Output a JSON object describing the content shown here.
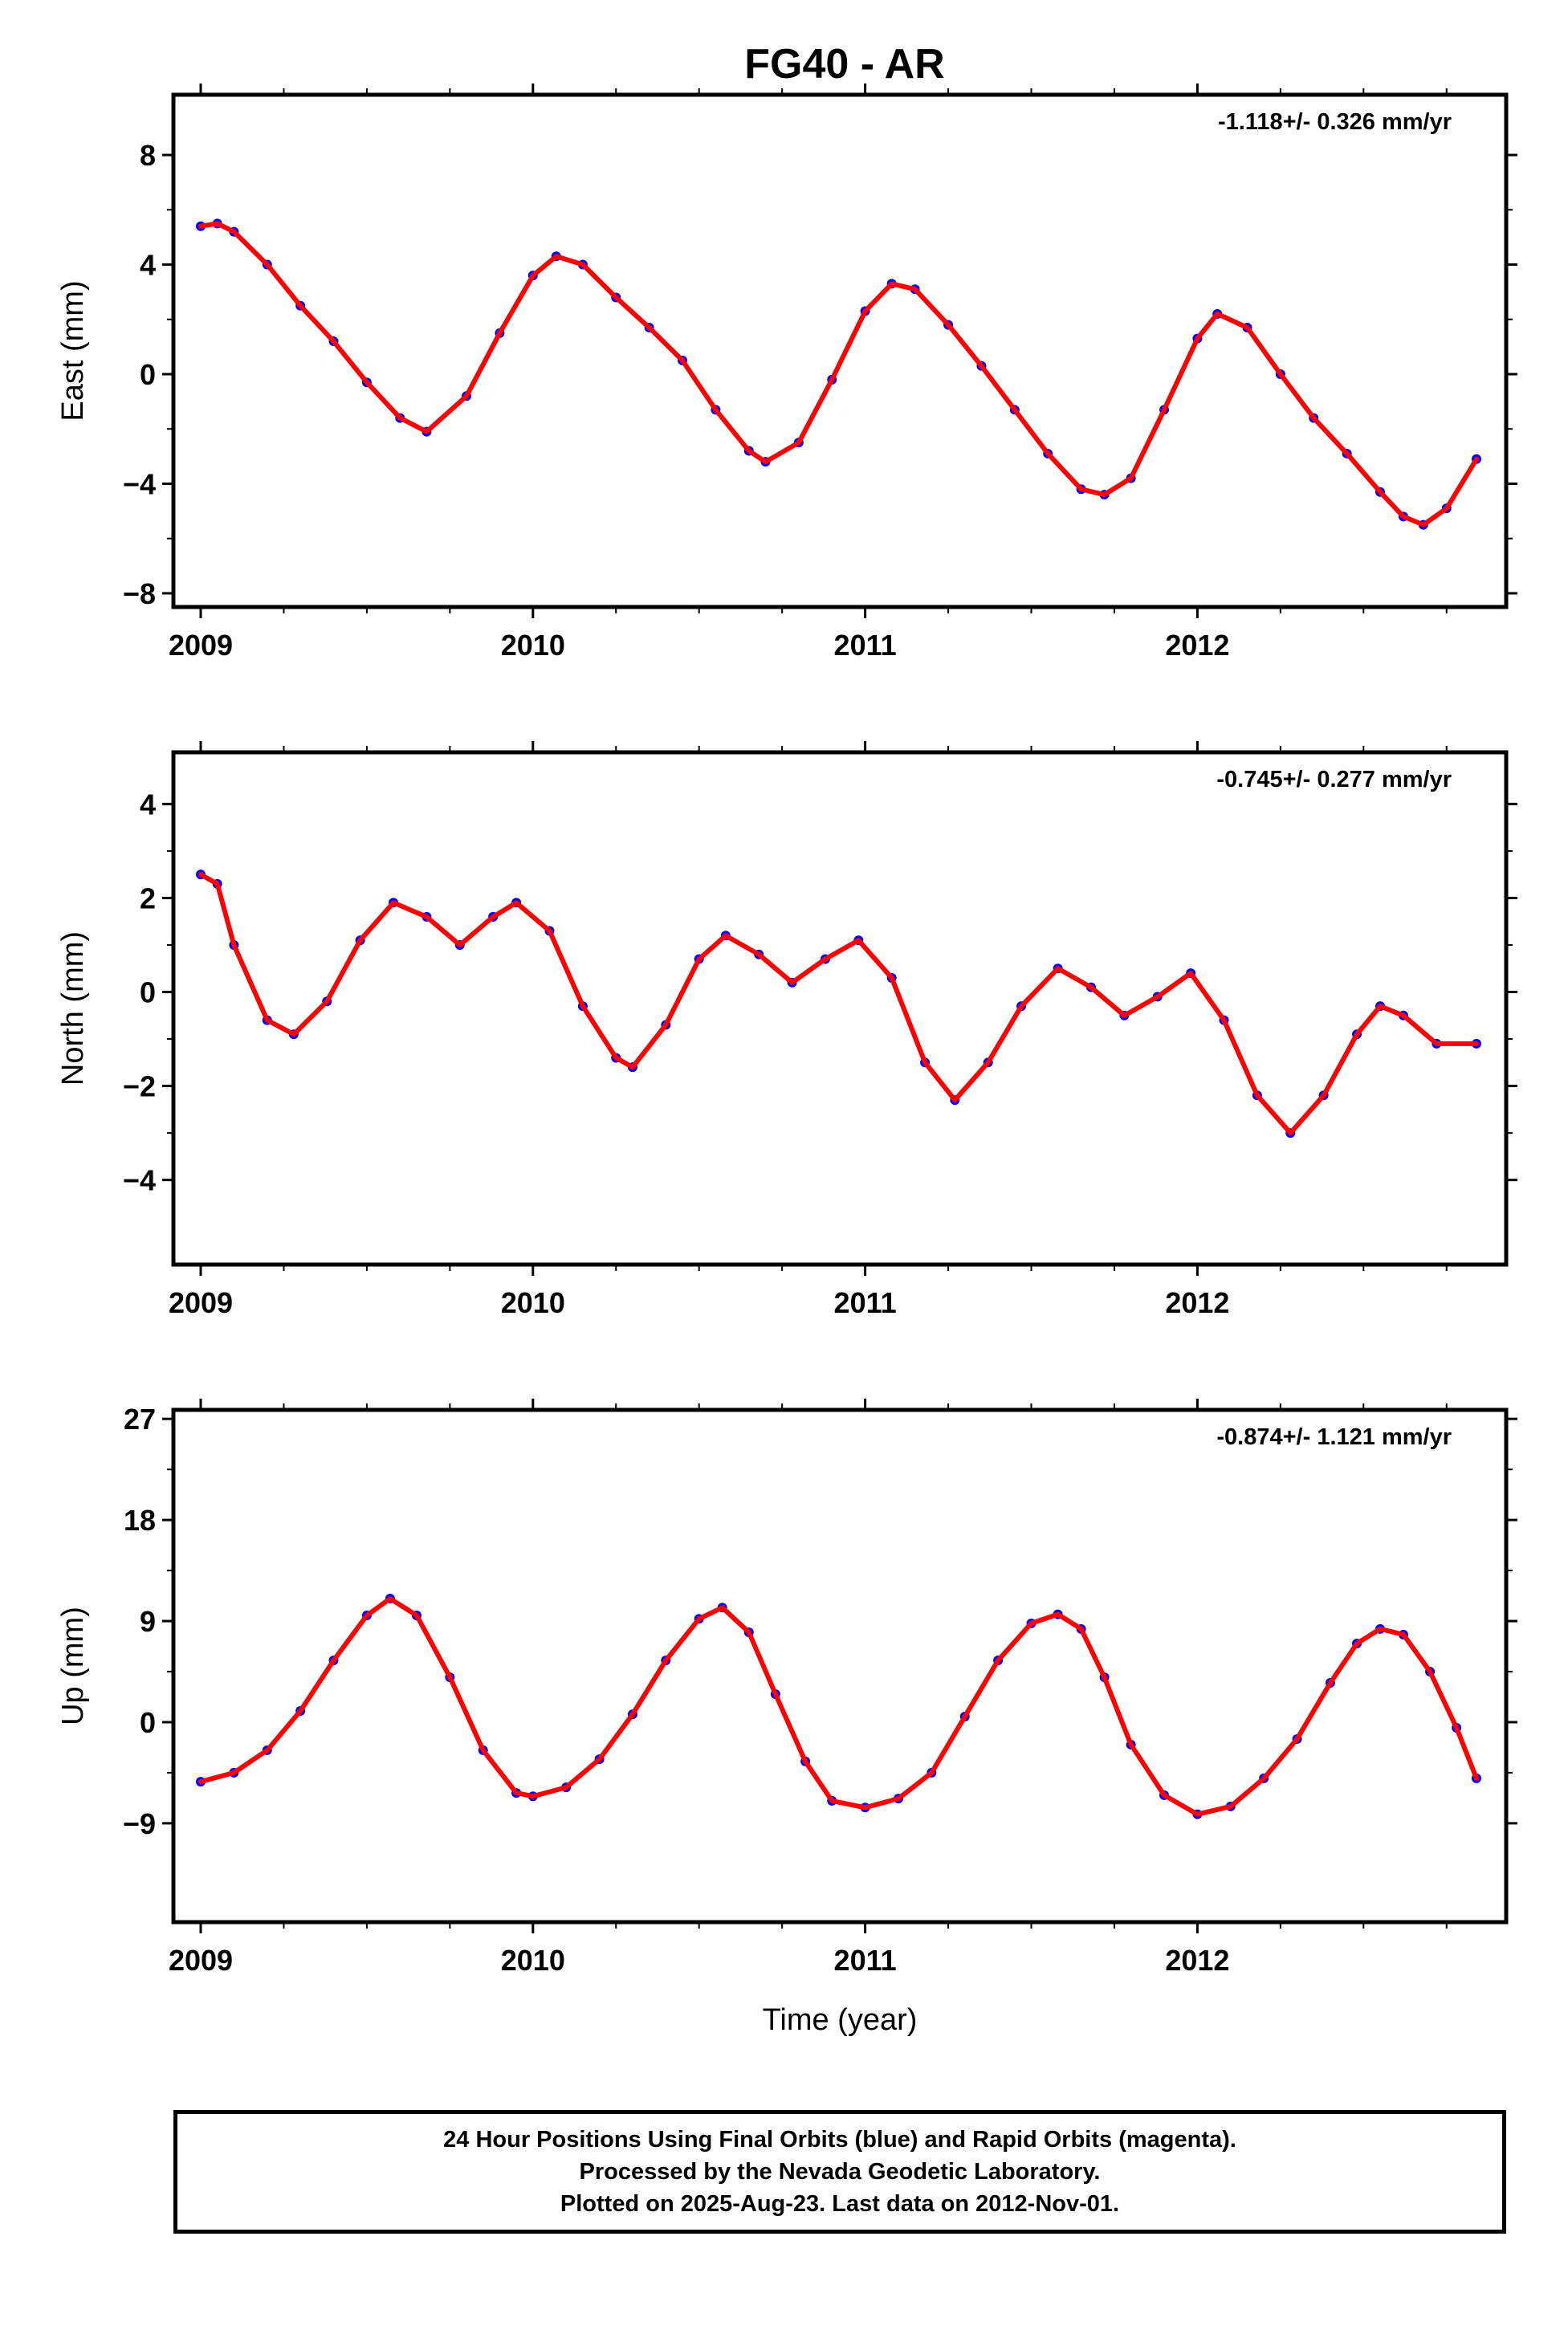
{
  "footer": {
    "line1": "24 Hour Positions Using Final Orbits (blue) and Rapid Orbits (magenta).",
    "line2": "Processed by the Nevada Geodetic Laboratory.",
    "line3": "Plotted on 2025-Aug-23. Last data on 2012-Nov-01."
  },
  "colors": {
    "points": "#0000ff",
    "fit": "#ff0000",
    "frame": "#000000"
  },
  "chart_data": [
    {
      "type": "scatter",
      "title": "FG40 - AR",
      "xlabel": "",
      "ylabel": "East (mm)",
      "rate_text": "-1.118+/- 0.326 mm/yr",
      "xlim": [
        2009.0,
        2012.84
      ],
      "ylim": [
        -8.5,
        10.2
      ],
      "xticks": [
        2009,
        2010,
        2011,
        2012
      ],
      "yticks": [
        -8,
        -4,
        0,
        4,
        8
      ],
      "grid": false,
      "series": [
        {
          "values": [
            [
              2009.0,
              5.4
            ],
            [
              2009.05,
              5.5
            ],
            [
              2009.1,
              5.2
            ],
            [
              2009.2,
              4.0
            ],
            [
              2009.3,
              2.5
            ],
            [
              2009.4,
              1.2
            ],
            [
              2009.5,
              -0.3
            ],
            [
              2009.6,
              -1.6
            ],
            [
              2009.68,
              -2.1
            ],
            [
              2009.8,
              -0.8
            ],
            [
              2009.9,
              1.5
            ],
            [
              2010.0,
              3.6
            ],
            [
              2010.07,
              4.3
            ],
            [
              2010.15,
              4.0
            ],
            [
              2010.25,
              2.8
            ],
            [
              2010.35,
              1.7
            ],
            [
              2010.45,
              0.5
            ],
            [
              2010.55,
              -1.3
            ],
            [
              2010.65,
              -2.8
            ],
            [
              2010.7,
              -3.2
            ],
            [
              2010.8,
              -2.5
            ],
            [
              2010.9,
              -0.2
            ],
            [
              2011.0,
              2.3
            ],
            [
              2011.08,
              3.3
            ],
            [
              2011.15,
              3.1
            ],
            [
              2011.25,
              1.8
            ],
            [
              2011.35,
              0.3
            ],
            [
              2011.45,
              -1.3
            ],
            [
              2011.55,
              -2.9
            ],
            [
              2011.65,
              -4.2
            ],
            [
              2011.72,
              -4.4
            ],
            [
              2011.8,
              -3.8
            ],
            [
              2011.9,
              -1.3
            ],
            [
              2012.0,
              1.3
            ],
            [
              2012.06,
              2.2
            ],
            [
              2012.15,
              1.7
            ],
            [
              2012.25,
              0.0
            ],
            [
              2012.35,
              -1.6
            ],
            [
              2012.45,
              -2.9
            ],
            [
              2012.55,
              -4.3
            ],
            [
              2012.62,
              -5.2
            ],
            [
              2012.68,
              -5.5
            ],
            [
              2012.75,
              -4.9
            ],
            [
              2012.84,
              -3.1
            ]
          ]
        }
      ]
    },
    {
      "type": "scatter",
      "title": "",
      "xlabel": "",
      "ylabel": "North (mm)",
      "rate_text": "-0.745+/- 0.277 mm/yr",
      "xlim": [
        2009.0,
        2012.84
      ],
      "ylim": [
        -5.8,
        5.1
      ],
      "xticks": [
        2009,
        2010,
        2011,
        2012
      ],
      "yticks": [
        -4,
        -2,
        0,
        2,
        4
      ],
      "grid": false,
      "series": [
        {
          "values": [
            [
              2009.0,
              2.5
            ],
            [
              2009.05,
              2.3
            ],
            [
              2009.1,
              1.0
            ],
            [
              2009.2,
              -0.6
            ],
            [
              2009.28,
              -0.9
            ],
            [
              2009.38,
              -0.2
            ],
            [
              2009.48,
              1.1
            ],
            [
              2009.58,
              1.9
            ],
            [
              2009.68,
              1.6
            ],
            [
              2009.78,
              1.0
            ],
            [
              2009.88,
              1.6
            ],
            [
              2009.95,
              1.9
            ],
            [
              2010.05,
              1.3
            ],
            [
              2010.15,
              -0.3
            ],
            [
              2010.25,
              -1.4
            ],
            [
              2010.3,
              -1.6
            ],
            [
              2010.4,
              -0.7
            ],
            [
              2010.5,
              0.7
            ],
            [
              2010.58,
              1.2
            ],
            [
              2010.68,
              0.8
            ],
            [
              2010.78,
              0.2
            ],
            [
              2010.88,
              0.7
            ],
            [
              2010.98,
              1.1
            ],
            [
              2011.08,
              0.3
            ],
            [
              2011.18,
              -1.5
            ],
            [
              2011.27,
              -2.3
            ],
            [
              2011.37,
              -1.5
            ],
            [
              2011.47,
              -0.3
            ],
            [
              2011.58,
              0.5
            ],
            [
              2011.68,
              0.1
            ],
            [
              2011.78,
              -0.5
            ],
            [
              2011.88,
              -0.1
            ],
            [
              2011.98,
              0.4
            ],
            [
              2012.08,
              -0.6
            ],
            [
              2012.18,
              -2.2
            ],
            [
              2012.28,
              -3.0
            ],
            [
              2012.38,
              -2.2
            ],
            [
              2012.48,
              -0.9
            ],
            [
              2012.55,
              -0.3
            ],
            [
              2012.62,
              -0.5
            ],
            [
              2012.72,
              -1.1
            ],
            [
              2012.84,
              -1.1
            ]
          ]
        }
      ]
    },
    {
      "type": "scatter",
      "title": "",
      "xlabel": "Time (year)",
      "ylabel": "Up (mm)",
      "rate_text": "-0.874+/- 1.121 mm/yr",
      "xlim": [
        2009.0,
        2012.84
      ],
      "ylim": [
        -17.8,
        27.8
      ],
      "xticks": [
        2009,
        2010,
        2011,
        2012
      ],
      "yticks": [
        -9,
        0,
        9,
        18,
        27
      ],
      "grid": false,
      "series": [
        {
          "values": [
            [
              2009.0,
              -5.3
            ],
            [
              2009.1,
              -4.5
            ],
            [
              2009.2,
              -2.5
            ],
            [
              2009.3,
              1.0
            ],
            [
              2009.4,
              5.5
            ],
            [
              2009.5,
              9.5
            ],
            [
              2009.57,
              11.0
            ],
            [
              2009.65,
              9.5
            ],
            [
              2009.75,
              4.0
            ],
            [
              2009.85,
              -2.5
            ],
            [
              2009.95,
              -6.3
            ],
            [
              2010.0,
              -6.6
            ],
            [
              2010.1,
              -5.8
            ],
            [
              2010.2,
              -3.3
            ],
            [
              2010.3,
              0.7
            ],
            [
              2010.4,
              5.5
            ],
            [
              2010.5,
              9.2
            ],
            [
              2010.57,
              10.2
            ],
            [
              2010.65,
              8.0
            ],
            [
              2010.73,
              2.5
            ],
            [
              2010.82,
              -3.5
            ],
            [
              2010.9,
              -7.0
            ],
            [
              2011.0,
              -7.6
            ],
            [
              2011.1,
              -6.8
            ],
            [
              2011.2,
              -4.5
            ],
            [
              2011.3,
              0.5
            ],
            [
              2011.4,
              5.5
            ],
            [
              2011.5,
              8.8
            ],
            [
              2011.58,
              9.6
            ],
            [
              2011.65,
              8.3
            ],
            [
              2011.72,
              4.0
            ],
            [
              2011.8,
              -2.0
            ],
            [
              2011.9,
              -6.5
            ],
            [
              2012.0,
              -8.2
            ],
            [
              2012.1,
              -7.5
            ],
            [
              2012.2,
              -5.0
            ],
            [
              2012.3,
              -1.5
            ],
            [
              2012.4,
              3.5
            ],
            [
              2012.48,
              7.0
            ],
            [
              2012.55,
              8.3
            ],
            [
              2012.62,
              7.8
            ],
            [
              2012.7,
              4.5
            ],
            [
              2012.78,
              -0.5
            ],
            [
              2012.84,
              -5.0
            ]
          ]
        }
      ]
    }
  ]
}
